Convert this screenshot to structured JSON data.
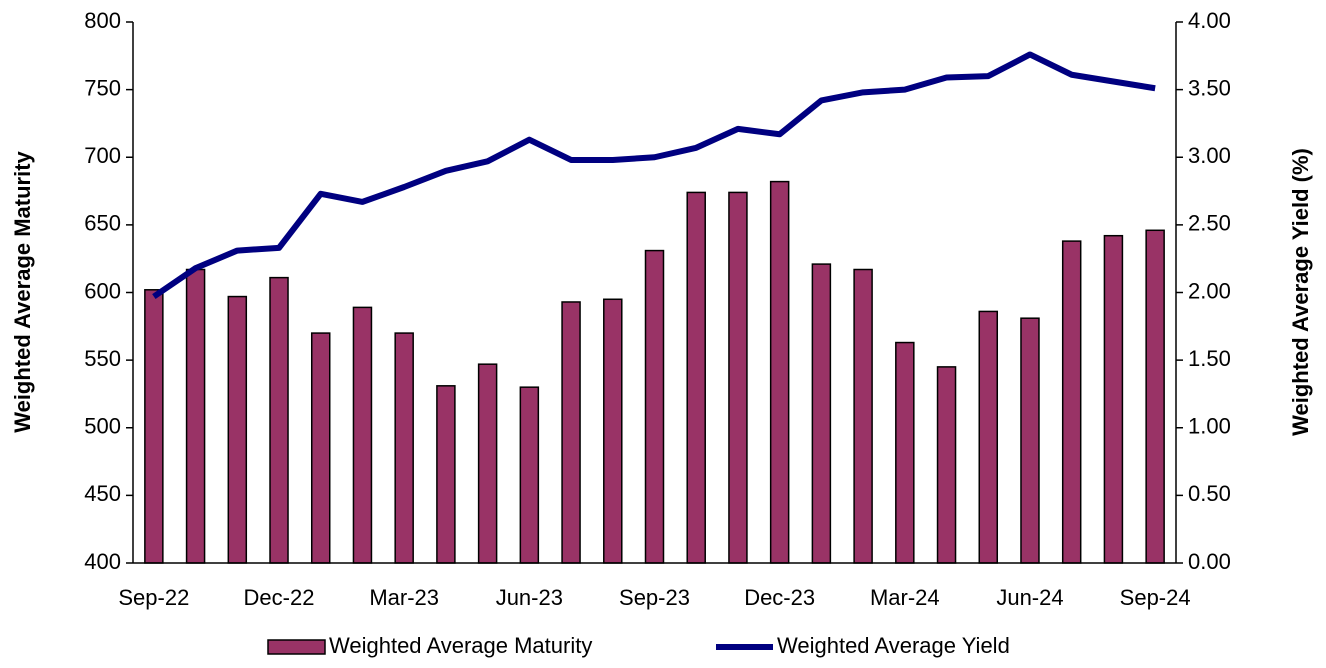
{
  "chart_data": {
    "type": "bar-line",
    "categories": [
      "Sep-22",
      null,
      null,
      "Dec-22",
      null,
      null,
      "Mar-23",
      null,
      null,
      "Jun-23",
      null,
      null,
      "Sep-23",
      null,
      null,
      "Dec-23",
      null,
      null,
      "Mar-24",
      null,
      null,
      "Jun-24",
      null,
      null,
      "Sep-24"
    ],
    "y_label": "Weighted Average Maturity",
    "y2_label": "Weighted Average Yield (%)",
    "ylim": [
      400,
      800
    ],
    "yticks": [
      400,
      450,
      500,
      550,
      600,
      650,
      700,
      750,
      800
    ],
    "y2lim": [
      0,
      4
    ],
    "y2ticks": [
      {
        "value": 0,
        "label": "0.00"
      },
      {
        "value": 0.5,
        "label": "0.50"
      },
      {
        "value": 1,
        "label": "1.00"
      },
      {
        "value": 1.5,
        "label": "1.50"
      },
      {
        "value": 2,
        "label": "2.00"
      },
      {
        "value": 2.5,
        "label": "2.50"
      },
      {
        "value": 3,
        "label": "3.00"
      },
      {
        "value": 3.5,
        "label": "3.50"
      },
      {
        "value": 4,
        "label": "4.00"
      }
    ],
    "legend": "bottom",
    "series": [
      {
        "name": "Weighted Average Maturity",
        "type": "bar",
        "color": "#993366",
        "values": [
          602,
          617,
          597,
          611,
          570,
          589,
          570,
          531,
          547,
          530,
          593,
          595,
          631,
          674,
          674,
          682,
          621,
          617,
          563,
          545,
          586,
          581,
          638,
          642,
          646
        ]
      },
      {
        "name": "Weighted Average Yield",
        "type": "line",
        "axis": "y2",
        "color": "#000080",
        "values": [
          1.97,
          2.18,
          2.31,
          2.33,
          2.73,
          2.67,
          2.78,
          2.9,
          2.97,
          3.13,
          2.98,
          2.98,
          3.0,
          3.07,
          3.21,
          3.17,
          3.42,
          3.48,
          3.5,
          3.59,
          3.6,
          3.76,
          3.61,
          3.56,
          3.51
        ]
      }
    ]
  }
}
